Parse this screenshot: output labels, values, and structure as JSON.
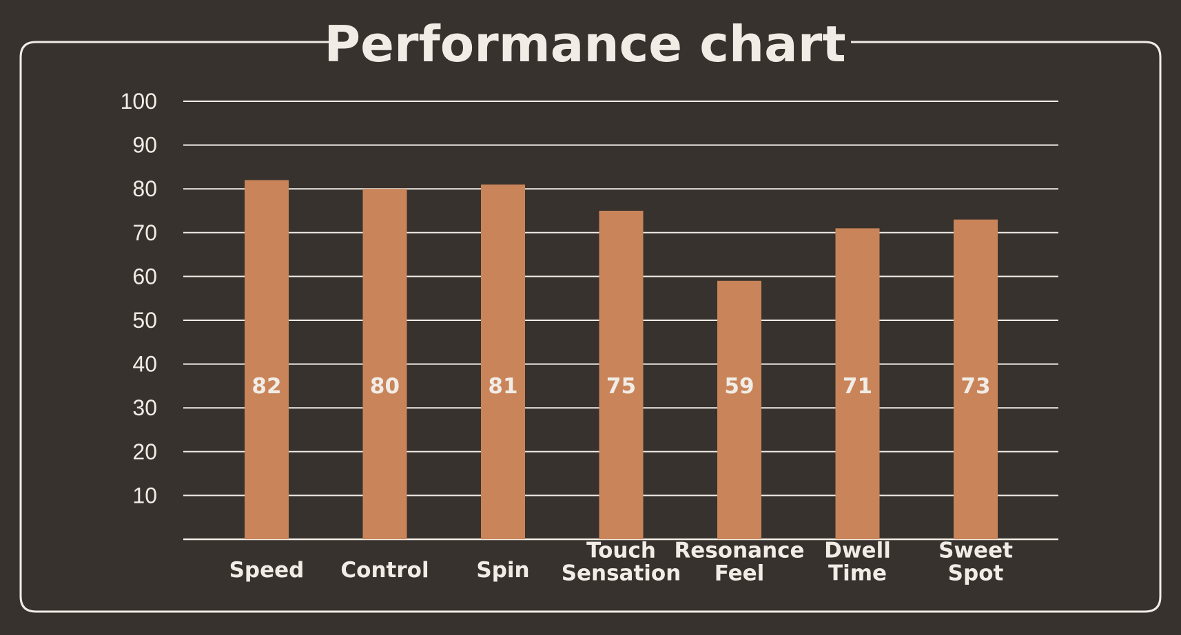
{
  "chart_data": {
    "type": "bar",
    "title": "Performance chart",
    "categories": [
      "Speed",
      "Control",
      "Spin",
      "Touch Sensation",
      "Resonance Feel",
      "Dwell Time",
      "Sweet Spot"
    ],
    "category_lines": [
      [
        "Speed"
      ],
      [
        "Control"
      ],
      [
        "Spin"
      ],
      [
        "Touch",
        "Sensation"
      ],
      [
        "Resonance",
        "Feel"
      ],
      [
        "Dwell",
        "Time"
      ],
      [
        "Sweet",
        "Spot"
      ]
    ],
    "values": [
      82,
      80,
      81,
      75,
      59,
      71,
      73
    ],
    "data_labels": [
      "82",
      "80",
      "81",
      "75",
      "59",
      "71",
      "73"
    ],
    "yticks": [
      "10",
      "20",
      "30",
      "40",
      "50",
      "60",
      "70",
      "80",
      "90",
      "100"
    ],
    "xlabel": "",
    "ylabel": "",
    "ylim": [
      0,
      100
    ],
    "grid": true,
    "legend": "none"
  },
  "colors": {
    "background": "#37322d",
    "bar": "#c9845a",
    "grid": "#f1ede6",
    "text": "#f1ede6",
    "frame": "#f1ede6"
  }
}
